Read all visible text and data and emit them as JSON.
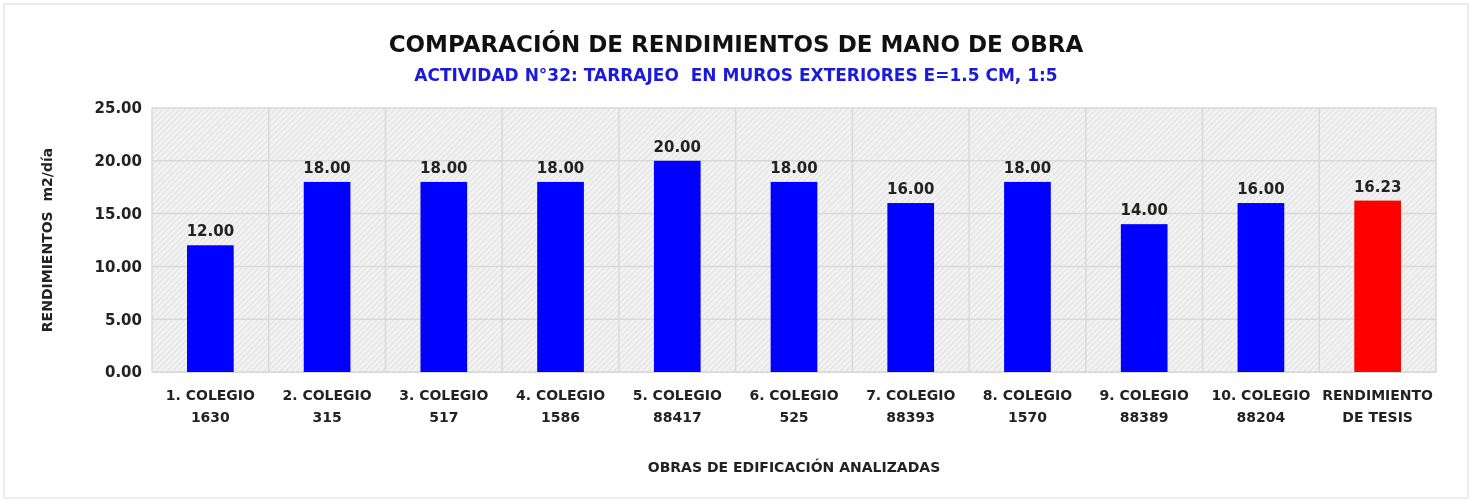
{
  "chart_data": {
    "type": "bar",
    "title": "COMPARACIÓN DE RENDIMIENTOS DE MANO DE OBRA",
    "subtitle": "ACTIVIDAD N°32: TARRAJEO  EN MUROS EXTERIORES E=1.5 CM, 1:5",
    "xlabel": "OBRAS DE EDIFICACIÓN ANALIZADAS",
    "ylabel": "RENDIMIENTOS  m2/día",
    "categories": [
      "1. COLEGIO\n1630",
      "2. COLEGIO\n315",
      "3. COLEGIO\n517",
      "4. COLEGIO\n1586",
      "5. COLEGIO\n88417",
      "6. COLEGIO\n525",
      "7. COLEGIO\n88393",
      "8. COLEGIO\n1570",
      "9. COLEGIO\n88389",
      "10. COLEGIO\n88204",
      "RENDIMIENTO\nDE TESIS"
    ],
    "values": [
      12,
      18,
      18,
      18,
      20,
      18,
      16,
      18,
      14,
      16,
      16.23
    ],
    "value_labels": [
      "12.00",
      "18.00",
      "18.00",
      "18.00",
      "20.00",
      "18.00",
      "16.00",
      "18.00",
      "14.00",
      "16.00",
      "16.23"
    ],
    "colors": [
      "#0000ff",
      "#0000ff",
      "#0000ff",
      "#0000ff",
      "#0000ff",
      "#0000ff",
      "#0000ff",
      "#0000ff",
      "#0000ff",
      "#0000ff",
      "#ff0000"
    ],
    "ylim": [
      0,
      25
    ],
    "yticks": [
      {
        "value": 0,
        "label": "0.00"
      },
      {
        "value": 5,
        "label": "5.00"
      },
      {
        "value": 10,
        "label": "10.00"
      },
      {
        "value": 15,
        "label": "15.00"
      },
      {
        "value": 20,
        "label": "20.00"
      },
      {
        "value": 25,
        "label": "25.00"
      }
    ],
    "grid": true
  }
}
